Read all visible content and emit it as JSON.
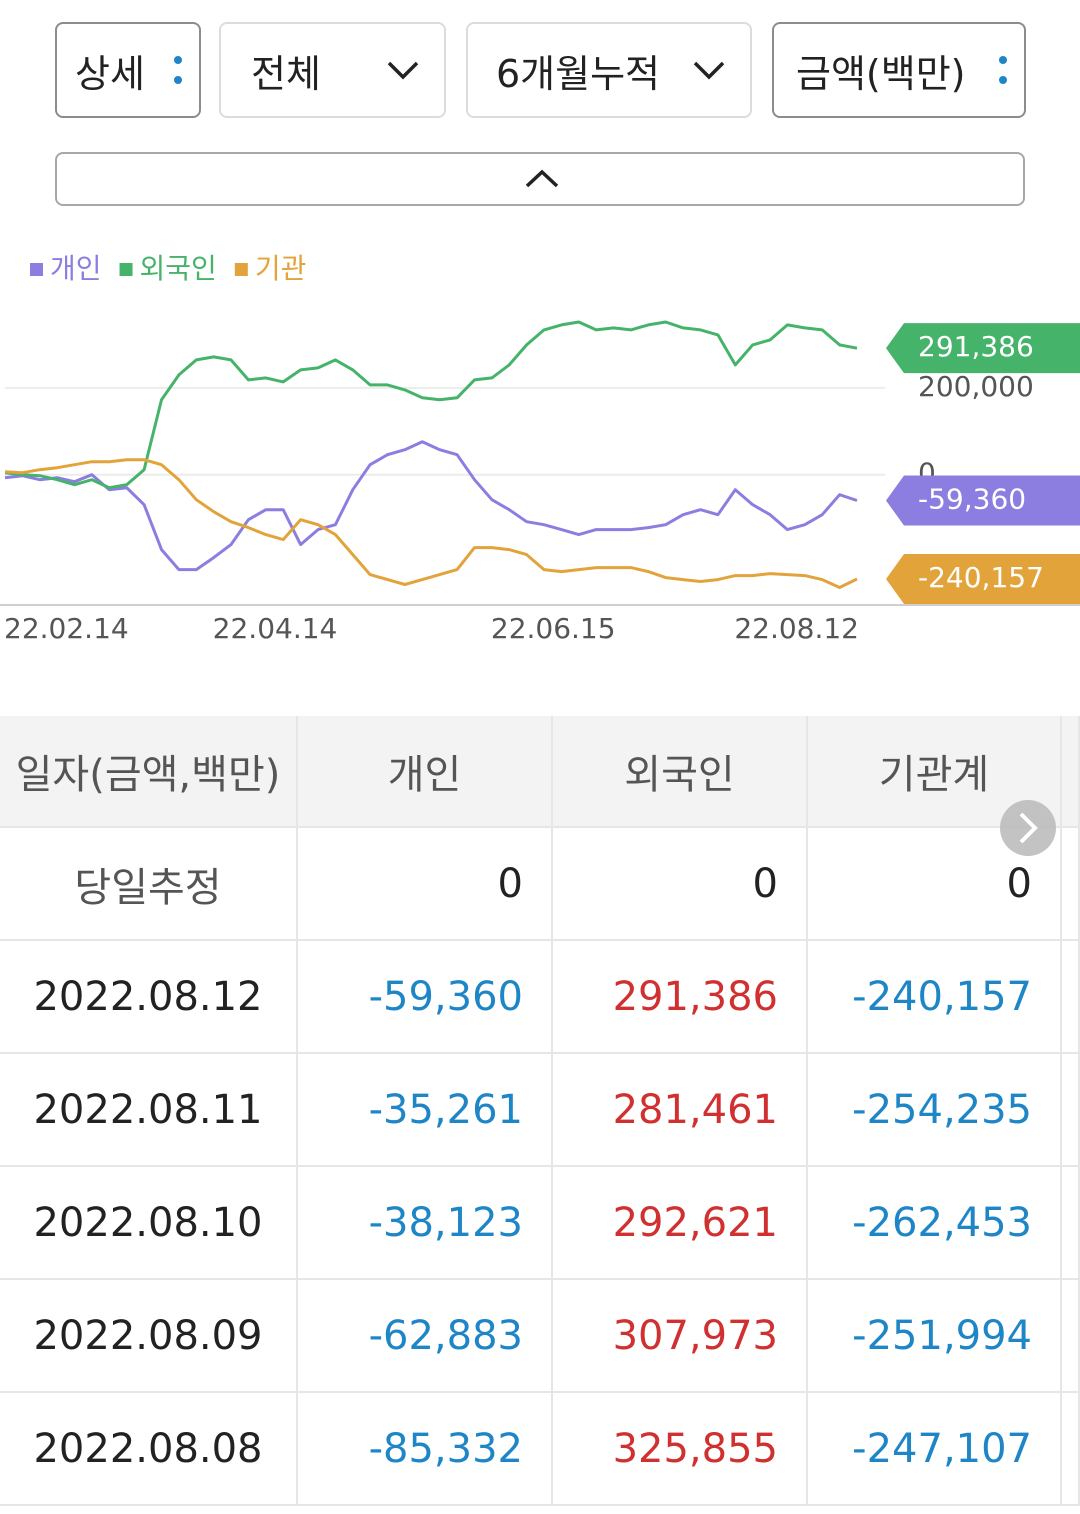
{
  "controls": {
    "detail": "상세",
    "scope": "전체",
    "period": "6개월누적",
    "unit": "금액(백만)"
  },
  "chart_data": {
    "type": "line",
    "categories": [
      null,
      null,
      null,
      null,
      null,
      null,
      null,
      "22.02.14",
      null,
      null,
      null,
      null,
      null,
      null,
      null,
      null,
      null,
      null,
      null,
      "22.04.14",
      null,
      null,
      null,
      null,
      null,
      null,
      null,
      null,
      null,
      null,
      null,
      null,
      null,
      null,
      null,
      "22.06.15",
      null,
      null,
      null,
      null,
      null,
      null,
      null,
      null,
      null,
      null,
      null,
      null,
      null,
      "22.08.12"
    ],
    "series": [
      {
        "name": "개인",
        "color": "#8b7ee0",
        "values": [
          -6900,
          -2300,
          -11500,
          -6900,
          -16100,
          0,
          -34500,
          -29900,
          -69000,
          -172400,
          -218400,
          -218400,
          -190800,
          -160900,
          -103500,
          -80500,
          -80500,
          -160900,
          -126400,
          -115000,
          -34500,
          23000,
          46000,
          57500,
          75900,
          57500,
          46000,
          -11500,
          -57500,
          -80500,
          -108100,
          -115000,
          -126400,
          -137900,
          -126400,
          -126400,
          -126400,
          -121800,
          -115000,
          -92000,
          -80500,
          -92000,
          -34500,
          -69000,
          -92000,
          -126400,
          -115000,
          -92000,
          -46000,
          -59360
        ],
        "value_labels": [
          null,
          null,
          null,
          null,
          null,
          null,
          null,
          null,
          null,
          null,
          null,
          null,
          null,
          null,
          null,
          null,
          null,
          null,
          null,
          null,
          null,
          null,
          null,
          null,
          null,
          null,
          null,
          null,
          null,
          null,
          null,
          null,
          null,
          null,
          null,
          null,
          null,
          null,
          null,
          null,
          null,
          null,
          null,
          null,
          null,
          null,
          null,
          null,
          null,
          "-59,360"
        ]
      },
      {
        "name": "외국인",
        "color": "#46b36a",
        "values": [
          4600,
          0,
          -2300,
          -11500,
          -23000,
          -11500,
          -29900,
          -23000,
          11500,
          172400,
          229900,
          264400,
          271300,
          264400,
          218400,
          223000,
          213800,
          241400,
          246000,
          264400,
          241400,
          206900,
          206900,
          195400,
          177000,
          172400,
          177000,
          218400,
          223000,
          252900,
          298900,
          333400,
          344900,
          351700,
          333400,
          338000,
          333400,
          344900,
          351700,
          338000,
          333400,
          321900,
          252900,
          298900,
          310400,
          344900,
          338000,
          333400,
          298900,
          291386
        ],
        "value_labels": [
          null,
          null,
          null,
          null,
          null,
          null,
          null,
          null,
          null,
          null,
          null,
          null,
          null,
          null,
          null,
          null,
          null,
          null,
          null,
          null,
          null,
          null,
          null,
          null,
          null,
          null,
          null,
          null,
          null,
          null,
          null,
          null,
          null,
          null,
          null,
          null,
          null,
          null,
          null,
          null,
          null,
          null,
          null,
          null,
          null,
          null,
          null,
          null,
          null,
          "291,386"
        ]
      },
      {
        "name": "기관",
        "color": "#e3a33b",
        "values": [
          6900,
          4600,
          11500,
          16100,
          23000,
          29900,
          29900,
          34500,
          34500,
          23000,
          -11500,
          -57500,
          -85100,
          -108100,
          -121800,
          -137900,
          -149400,
          -103500,
          -115000,
          -137900,
          -183900,
          -229900,
          -241400,
          -252900,
          -241400,
          -229900,
          -218400,
          -167800,
          -167800,
          -172400,
          -183900,
          -218400,
          -223000,
          -218400,
          -213800,
          -213800,
          -213800,
          -223000,
          -236800,
          -241400,
          -246000,
          -241400,
          -232200,
          -232200,
          -227600,
          -229900,
          -232200,
          -241400,
          -259800,
          -240157
        ],
        "value_labels": [
          null,
          null,
          null,
          null,
          null,
          null,
          null,
          null,
          null,
          null,
          null,
          null,
          null,
          null,
          null,
          null,
          null,
          null,
          null,
          null,
          null,
          null,
          null,
          null,
          null,
          null,
          null,
          null,
          null,
          null,
          null,
          null,
          null,
          null,
          null,
          null,
          null,
          null,
          null,
          null,
          null,
          null,
          null,
          null,
          null,
          null,
          null,
          null,
          null,
          "-240,157"
        ]
      }
    ],
    "ylim": [
      -300000,
      400000
    ],
    "yticks": [
      0,
      {
        "value": 200000,
        "label": "200,000"
      }
    ],
    "grid": true,
    "legend": "top-left"
  },
  "table": {
    "headers": [
      "일자(금액,백만)",
      "개인",
      "외국인",
      "기관계"
    ],
    "rows": [
      [
        "당일추정",
        "0",
        "0",
        "0"
      ],
      [
        "2022.08.12",
        "-59,360",
        "291,386",
        "-240,157"
      ],
      [
        "2022.08.11",
        "-35,261",
        "281,461",
        "-254,235"
      ],
      [
        "2022.08.10",
        "-38,123",
        "292,621",
        "-262,453"
      ],
      [
        "2022.08.09",
        "-62,883",
        "307,973",
        "-251,994"
      ],
      [
        "2022.08.08",
        "-85,332",
        "325,855",
        "-247,107"
      ]
    ]
  }
}
